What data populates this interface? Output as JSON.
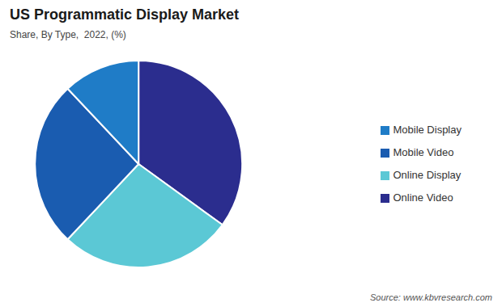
{
  "chart_data": {
    "type": "pie",
    "title": "US Programmatic Display Market",
    "subtitle": "Share, By Type,  2022, (%)",
    "annotations": [
      "Source: www.kbvresearch.com"
    ],
    "categories": [
      "Online Video",
      "Online Display",
      "Mobile Video",
      "Mobile Display"
    ],
    "values": [
      35,
      27,
      26,
      12
    ],
    "colors": [
      "#2b2d8e",
      "#5bc8d5",
      "#1a5cb0",
      "#1f7cc7"
    ],
    "legend": "right"
  }
}
